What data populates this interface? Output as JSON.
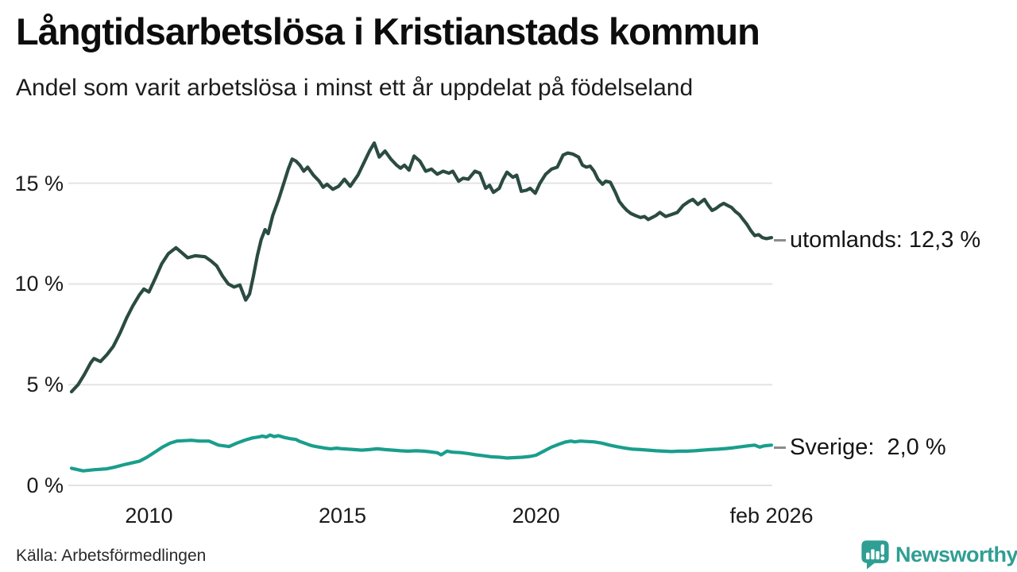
{
  "header": {
    "title": "Långtidsarbetslösa i Kristianstads kommun",
    "subtitle": "Andel som varit arbetslösa i minst ett år uppdelat på födelseland"
  },
  "footer": {
    "source": "Källa: Arbetsförmedlingen",
    "brand": "Newsworthy"
  },
  "colors": {
    "utomlands": "#2b4b42",
    "sverige": "#1a9e8c",
    "grid": "#e3e3e3",
    "brand": "#2f9e93",
    "axis_text": "#1a1a1a",
    "dash": "#8b8b8b"
  },
  "chart_data": {
    "type": "line",
    "title": "Långtidsarbetslösa i Kristianstads kommun",
    "subtitle": "Andel som varit arbetslösa i minst ett år uppdelat på födelseland",
    "xlabel": "",
    "ylabel": "",
    "x_range": [
      2008.0,
      2026.083
    ],
    "y_range": [
      0,
      17.59
    ],
    "grid": true,
    "legend_position": "end-of-line",
    "y_ticks": [
      {
        "value": 0,
        "label": "0 %"
      },
      {
        "value": 5,
        "label": "5 %"
      },
      {
        "value": 10,
        "label": "10 %"
      },
      {
        "value": 15,
        "label": "15 %"
      }
    ],
    "x_ticks": [
      {
        "value": 2010,
        "label": "2010"
      },
      {
        "value": 2015,
        "label": "2015"
      },
      {
        "value": 2020,
        "label": "2020"
      },
      {
        "value": 2026.083,
        "label": "feb 2026"
      }
    ],
    "series": [
      {
        "name": "utomlands",
        "end_label": "utomlands: 12,3 %",
        "last_value": 12.3,
        "color_key": "utomlands",
        "points": [
          [
            2008.0,
            4.65
          ],
          [
            2008.17,
            5.0
          ],
          [
            2008.33,
            5.5
          ],
          [
            2008.5,
            6.1
          ],
          [
            2008.58,
            6.3
          ],
          [
            2008.75,
            6.15
          ],
          [
            2008.92,
            6.5
          ],
          [
            2009.08,
            6.9
          ],
          [
            2009.25,
            7.55
          ],
          [
            2009.42,
            8.3
          ],
          [
            2009.58,
            8.9
          ],
          [
            2009.75,
            9.45
          ],
          [
            2009.87,
            9.75
          ],
          [
            2010.0,
            9.6
          ],
          [
            2010.17,
            10.3
          ],
          [
            2010.33,
            11.0
          ],
          [
            2010.5,
            11.5
          ],
          [
            2010.7,
            11.8
          ],
          [
            2010.85,
            11.55
          ],
          [
            2011.0,
            11.3
          ],
          [
            2011.2,
            11.4
          ],
          [
            2011.45,
            11.35
          ],
          [
            2011.6,
            11.15
          ],
          [
            2011.75,
            10.9
          ],
          [
            2011.9,
            10.4
          ],
          [
            2012.05,
            10.0
          ],
          [
            2012.2,
            9.85
          ],
          [
            2012.35,
            9.95
          ],
          [
            2012.5,
            9.2
          ],
          [
            2012.6,
            9.5
          ],
          [
            2012.7,
            10.4
          ],
          [
            2012.8,
            11.4
          ],
          [
            2012.9,
            12.2
          ],
          [
            2013.0,
            12.7
          ],
          [
            2013.08,
            12.5
          ],
          [
            2013.2,
            13.4
          ],
          [
            2013.35,
            14.2
          ],
          [
            2013.5,
            15.1
          ],
          [
            2013.6,
            15.7
          ],
          [
            2013.7,
            16.2
          ],
          [
            2013.8,
            16.1
          ],
          [
            2013.9,
            15.9
          ],
          [
            2014.0,
            15.6
          ],
          [
            2014.1,
            15.8
          ],
          [
            2014.25,
            15.4
          ],
          [
            2014.4,
            15.1
          ],
          [
            2014.5,
            14.8
          ],
          [
            2014.6,
            14.95
          ],
          [
            2014.75,
            14.7
          ],
          [
            2014.9,
            14.85
          ],
          [
            2015.05,
            15.2
          ],
          [
            2015.2,
            14.85
          ],
          [
            2015.4,
            15.4
          ],
          [
            2015.55,
            16.0
          ],
          [
            2015.7,
            16.6
          ],
          [
            2015.82,
            17.0
          ],
          [
            2015.95,
            16.3
          ],
          [
            2016.1,
            16.6
          ],
          [
            2016.25,
            16.2
          ],
          [
            2016.4,
            15.9
          ],
          [
            2016.5,
            15.75
          ],
          [
            2016.6,
            15.9
          ],
          [
            2016.72,
            15.65
          ],
          [
            2016.85,
            16.35
          ],
          [
            2017.0,
            16.1
          ],
          [
            2017.15,
            15.6
          ],
          [
            2017.3,
            15.7
          ],
          [
            2017.45,
            15.45
          ],
          [
            2017.6,
            15.6
          ],
          [
            2017.75,
            15.5
          ],
          [
            2017.85,
            15.6
          ],
          [
            2018.0,
            15.1
          ],
          [
            2018.12,
            15.25
          ],
          [
            2018.25,
            15.2
          ],
          [
            2018.42,
            15.6
          ],
          [
            2018.55,
            15.5
          ],
          [
            2018.7,
            14.75
          ],
          [
            2018.8,
            14.9
          ],
          [
            2018.9,
            14.55
          ],
          [
            2019.05,
            14.75
          ],
          [
            2019.15,
            15.2
          ],
          [
            2019.25,
            15.55
          ],
          [
            2019.4,
            15.3
          ],
          [
            2019.5,
            15.4
          ],
          [
            2019.62,
            14.6
          ],
          [
            2019.75,
            14.65
          ],
          [
            2019.85,
            14.75
          ],
          [
            2019.98,
            14.5
          ],
          [
            2020.1,
            15.0
          ],
          [
            2020.25,
            15.45
          ],
          [
            2020.4,
            15.7
          ],
          [
            2020.55,
            15.8
          ],
          [
            2020.7,
            16.4
          ],
          [
            2020.82,
            16.5
          ],
          [
            2020.95,
            16.45
          ],
          [
            2021.1,
            16.3
          ],
          [
            2021.2,
            15.9
          ],
          [
            2021.3,
            15.8
          ],
          [
            2021.4,
            15.85
          ],
          [
            2021.5,
            15.6
          ],
          [
            2021.6,
            15.2
          ],
          [
            2021.72,
            14.95
          ],
          [
            2021.8,
            15.1
          ],
          [
            2021.92,
            15.05
          ],
          [
            2022.05,
            14.55
          ],
          [
            2022.15,
            14.1
          ],
          [
            2022.25,
            13.85
          ],
          [
            2022.35,
            13.65
          ],
          [
            2022.45,
            13.5
          ],
          [
            2022.56,
            13.4
          ],
          [
            2022.7,
            13.3
          ],
          [
            2022.8,
            13.35
          ],
          [
            2022.9,
            13.2
          ],
          [
            2023.0,
            13.3
          ],
          [
            2023.1,
            13.4
          ],
          [
            2023.2,
            13.55
          ],
          [
            2023.35,
            13.35
          ],
          [
            2023.5,
            13.45
          ],
          [
            2023.65,
            13.55
          ],
          [
            2023.8,
            13.9
          ],
          [
            2023.95,
            14.1
          ],
          [
            2024.05,
            14.2
          ],
          [
            2024.18,
            13.95
          ],
          [
            2024.28,
            14.1
          ],
          [
            2024.35,
            14.2
          ],
          [
            2024.45,
            13.9
          ],
          [
            2024.55,
            13.65
          ],
          [
            2024.65,
            13.75
          ],
          [
            2024.75,
            13.9
          ],
          [
            2024.85,
            14.0
          ],
          [
            2024.95,
            13.9
          ],
          [
            2025.05,
            13.8
          ],
          [
            2025.15,
            13.6
          ],
          [
            2025.25,
            13.45
          ],
          [
            2025.35,
            13.2
          ],
          [
            2025.45,
            12.95
          ],
          [
            2025.55,
            12.65
          ],
          [
            2025.65,
            12.4
          ],
          [
            2025.75,
            12.45
          ],
          [
            2025.85,
            12.3
          ],
          [
            2025.95,
            12.25
          ],
          [
            2026.083,
            12.3
          ]
        ]
      },
      {
        "name": "sverige",
        "end_label": "Sverige:  2,0 %",
        "last_value": 2.0,
        "color_key": "sverige",
        "points": [
          [
            2008.0,
            0.85
          ],
          [
            2008.3,
            0.72
          ],
          [
            2008.6,
            0.78
          ],
          [
            2008.9,
            0.82
          ],
          [
            2009.1,
            0.9
          ],
          [
            2009.4,
            1.05
          ],
          [
            2009.75,
            1.2
          ],
          [
            2009.95,
            1.4
          ],
          [
            2010.15,
            1.65
          ],
          [
            2010.35,
            1.9
          ],
          [
            2010.55,
            2.1
          ],
          [
            2010.72,
            2.2
          ],
          [
            2010.9,
            2.22
          ],
          [
            2011.1,
            2.24
          ],
          [
            2011.3,
            2.2
          ],
          [
            2011.55,
            2.2
          ],
          [
            2011.8,
            2.0
          ],
          [
            2012.07,
            1.93
          ],
          [
            2012.27,
            2.1
          ],
          [
            2012.48,
            2.25
          ],
          [
            2012.68,
            2.36
          ],
          [
            2012.83,
            2.4
          ],
          [
            2012.93,
            2.45
          ],
          [
            2013.03,
            2.4
          ],
          [
            2013.13,
            2.5
          ],
          [
            2013.24,
            2.42
          ],
          [
            2013.34,
            2.47
          ],
          [
            2013.5,
            2.38
          ],
          [
            2013.65,
            2.32
          ],
          [
            2013.8,
            2.28
          ],
          [
            2013.9,
            2.18
          ],
          [
            2014.05,
            2.08
          ],
          [
            2014.16,
            2.0
          ],
          [
            2014.26,
            1.95
          ],
          [
            2014.4,
            1.9
          ],
          [
            2014.55,
            1.85
          ],
          [
            2014.7,
            1.82
          ],
          [
            2014.85,
            1.85
          ],
          [
            2015.0,
            1.82
          ],
          [
            2015.3,
            1.78
          ],
          [
            2015.5,
            1.75
          ],
          [
            2015.7,
            1.78
          ],
          [
            2015.9,
            1.82
          ],
          [
            2016.1,
            1.78
          ],
          [
            2016.3,
            1.75
          ],
          [
            2016.5,
            1.72
          ],
          [
            2016.7,
            1.7
          ],
          [
            2016.9,
            1.72
          ],
          [
            2017.1,
            1.7
          ],
          [
            2017.3,
            1.66
          ],
          [
            2017.45,
            1.62
          ],
          [
            2017.55,
            1.52
          ],
          [
            2017.7,
            1.7
          ],
          [
            2017.85,
            1.65
          ],
          [
            2018.05,
            1.63
          ],
          [
            2018.25,
            1.58
          ],
          [
            2018.45,
            1.52
          ],
          [
            2018.65,
            1.47
          ],
          [
            2018.85,
            1.42
          ],
          [
            2019.05,
            1.4
          ],
          [
            2019.25,
            1.36
          ],
          [
            2019.45,
            1.38
          ],
          [
            2019.65,
            1.4
          ],
          [
            2019.85,
            1.44
          ],
          [
            2020.0,
            1.5
          ],
          [
            2020.2,
            1.7
          ],
          [
            2020.4,
            1.9
          ],
          [
            2020.6,
            2.05
          ],
          [
            2020.75,
            2.15
          ],
          [
            2020.9,
            2.2
          ],
          [
            2021.0,
            2.16
          ],
          [
            2021.15,
            2.2
          ],
          [
            2021.3,
            2.18
          ],
          [
            2021.5,
            2.16
          ],
          [
            2021.7,
            2.1
          ],
          [
            2021.9,
            2.0
          ],
          [
            2022.1,
            1.92
          ],
          [
            2022.3,
            1.85
          ],
          [
            2022.5,
            1.8
          ],
          [
            2022.7,
            1.78
          ],
          [
            2022.9,
            1.75
          ],
          [
            2023.1,
            1.72
          ],
          [
            2023.3,
            1.7
          ],
          [
            2023.5,
            1.68
          ],
          [
            2023.7,
            1.7
          ],
          [
            2023.9,
            1.7
          ],
          [
            2024.1,
            1.72
          ],
          [
            2024.3,
            1.75
          ],
          [
            2024.5,
            1.78
          ],
          [
            2024.7,
            1.8
          ],
          [
            2024.9,
            1.83
          ],
          [
            2025.1,
            1.87
          ],
          [
            2025.3,
            1.92
          ],
          [
            2025.5,
            1.97
          ],
          [
            2025.65,
            2.0
          ],
          [
            2025.78,
            1.9
          ],
          [
            2025.9,
            1.97
          ],
          [
            2026.083,
            2.0
          ]
        ]
      }
    ]
  }
}
